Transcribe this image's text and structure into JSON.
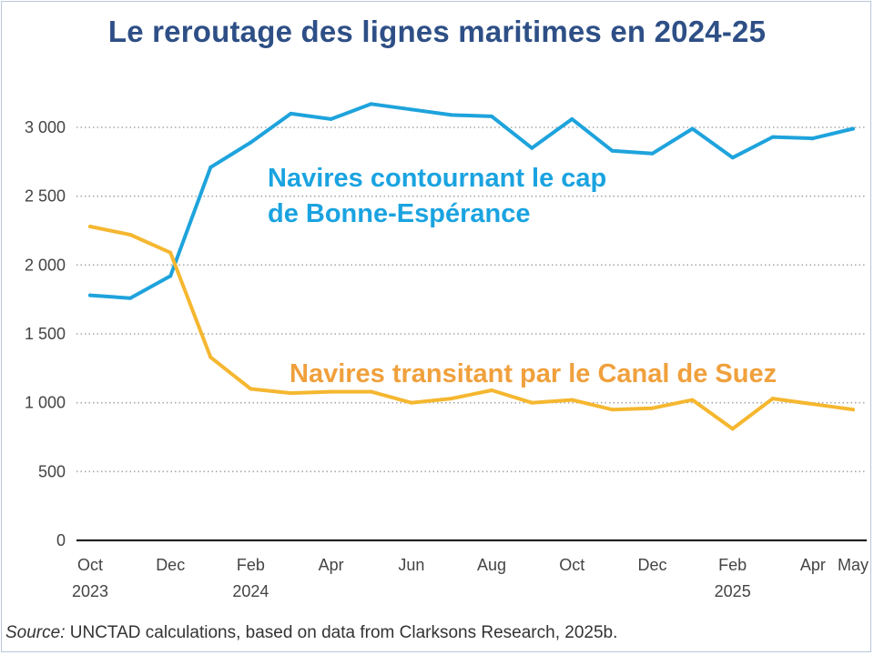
{
  "title": "Le reroutage des lignes maritimes en 2024-25",
  "source": {
    "label": "Source:",
    "text": " UNCTAD calculations, based on data from Clarksons Research, 2025b."
  },
  "chart_data": {
    "type": "line",
    "title": "Le reroutage des lignes maritimes en 2024-25",
    "xlabel": "",
    "ylabel": "",
    "ylim": [
      0,
      3200
    ],
    "grid": "horizontal dotted",
    "y_ticks": [
      {
        "value": 0,
        "label": "0"
      },
      {
        "value": 500,
        "label": "500"
      },
      {
        "value": 1000,
        "label": "1 000"
      },
      {
        "value": 1500,
        "label": "1 500"
      },
      {
        "value": 2000,
        "label": "2 000"
      },
      {
        "value": 2500,
        "label": "2 500"
      },
      {
        "value": 3000,
        "label": "3 000"
      }
    ],
    "x": [
      "Oct 2023",
      "Nov 2023",
      "Dec 2023",
      "Jan 2024",
      "Feb 2024",
      "Mar 2024",
      "Apr 2024",
      "May 2024",
      "Jun 2024",
      "Jul 2024",
      "Aug 2024",
      "Sep 2024",
      "Oct 2024",
      "Nov 2024",
      "Dec 2024",
      "Jan 2025",
      "Feb 2025",
      "Mar 2025",
      "Apr 2025",
      "May 2025"
    ],
    "x_tick_labels": [
      {
        "index": 0,
        "lines": [
          "Oct",
          "2023"
        ]
      },
      {
        "index": 2,
        "lines": [
          "Dec"
        ]
      },
      {
        "index": 4,
        "lines": [
          "Feb",
          "2024"
        ]
      },
      {
        "index": 6,
        "lines": [
          "Apr"
        ]
      },
      {
        "index": 8,
        "lines": [
          "Jun"
        ]
      },
      {
        "index": 10,
        "lines": [
          "Aug"
        ]
      },
      {
        "index": 12,
        "lines": [
          "Oct"
        ]
      },
      {
        "index": 14,
        "lines": [
          "Dec"
        ]
      },
      {
        "index": 16,
        "lines": [
          "Feb",
          "2025"
        ]
      },
      {
        "index": 18,
        "lines": [
          "Apr"
        ]
      },
      {
        "index": 19,
        "lines": [
          "May"
        ]
      }
    ],
    "series": [
      {
        "name": "Navires contournant le cap de Bonne-Espérance",
        "label_lines": [
          "Navires contournant le cap",
          "de Bonne-Espérance"
        ],
        "color": "#1ea3dc",
        "values": [
          1780,
          1760,
          1920,
          2710,
          2890,
          3100,
          3060,
          3170,
          3130,
          3090,
          3080,
          2850,
          3060,
          2830,
          2810,
          2990,
          2780,
          2930,
          2920,
          2990
        ]
      },
      {
        "name": "Navires transitant par le Canal de Suez",
        "label_lines": [
          "Navires transitant par le Canal de Suez"
        ],
        "color": "#f5b730",
        "values": [
          2280,
          2220,
          2090,
          1330,
          1100,
          1070,
          1080,
          1080,
          1000,
          1030,
          1090,
          1000,
          1020,
          950,
          960,
          1020,
          810,
          1030,
          990,
          950
        ]
      }
    ]
  },
  "colors": {
    "title": "#2e4f86",
    "label_blue": "#1aa3e0",
    "label_orange": "#f0a03c",
    "axis_text": "#444444",
    "grid": "#a8a8a8",
    "axis_line": "#222222"
  }
}
